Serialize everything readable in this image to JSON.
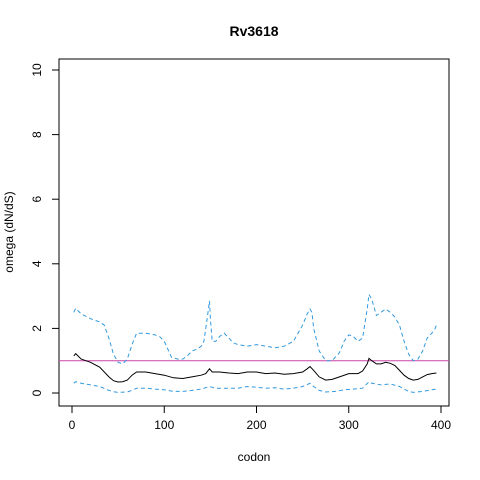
{
  "chart_data": {
    "type": "line",
    "title": "Rv3618",
    "xlabel": "codon",
    "ylabel": "omega (dN/dS)",
    "xlim": [
      0,
      395
    ],
    "ylim": [
      0,
      10
    ],
    "x_ticks": [
      0,
      100,
      200,
      300,
      400
    ],
    "y_ticks": [
      0,
      2,
      4,
      6,
      8,
      10
    ],
    "grid": false,
    "reference_line": {
      "y": 1,
      "color": "#cc44aa"
    },
    "series": [
      {
        "role": "upper",
        "style": "dashed",
        "color": "#3399dd",
        "points": [
          [
            2,
            2.5
          ],
          [
            4,
            2.62
          ],
          [
            10,
            2.45
          ],
          [
            20,
            2.3
          ],
          [
            30,
            2.2
          ],
          [
            35,
            2.1
          ],
          [
            40,
            1.7
          ],
          [
            45,
            1.2
          ],
          [
            50,
            0.95
          ],
          [
            55,
            0.9
          ],
          [
            60,
            1.05
          ],
          [
            65,
            1.5
          ],
          [
            70,
            1.85
          ],
          [
            80,
            1.85
          ],
          [
            90,
            1.8
          ],
          [
            95,
            1.75
          ],
          [
            100,
            1.6
          ],
          [
            108,
            1.1
          ],
          [
            115,
            1.05
          ],
          [
            120,
            1.05
          ],
          [
            125,
            1.15
          ],
          [
            130,
            1.3
          ],
          [
            135,
            1.35
          ],
          [
            140,
            1.45
          ],
          [
            143,
            1.6
          ],
          [
            146,
            2.2
          ],
          [
            149,
            2.85
          ],
          [
            150,
            2.3
          ],
          [
            152,
            1.6
          ],
          [
            156,
            1.6
          ],
          [
            160,
            1.75
          ],
          [
            165,
            1.85
          ],
          [
            170,
            1.7
          ],
          [
            175,
            1.55
          ],
          [
            180,
            1.5
          ],
          [
            190,
            1.45
          ],
          [
            200,
            1.5
          ],
          [
            210,
            1.45
          ],
          [
            220,
            1.4
          ],
          [
            230,
            1.45
          ],
          [
            240,
            1.6
          ],
          [
            250,
            2.1
          ],
          [
            255,
            2.45
          ],
          [
            258,
            2.6
          ],
          [
            260,
            2.5
          ],
          [
            262,
            2.0
          ],
          [
            268,
            1.3
          ],
          [
            275,
            1.0
          ],
          [
            282,
            1.0
          ],
          [
            290,
            1.25
          ],
          [
            295,
            1.6
          ],
          [
            300,
            1.8
          ],
          [
            305,
            1.75
          ],
          [
            310,
            1.6
          ],
          [
            315,
            1.7
          ],
          [
            320,
            2.6
          ],
          [
            322,
            3.05
          ],
          [
            325,
            2.9
          ],
          [
            330,
            2.4
          ],
          [
            335,
            2.5
          ],
          [
            340,
            2.6
          ],
          [
            345,
            2.5
          ],
          [
            350,
            2.35
          ],
          [
            355,
            2.1
          ],
          [
            360,
            1.6
          ],
          [
            365,
            1.2
          ],
          [
            370,
            1.0
          ],
          [
            375,
            1.05
          ],
          [
            380,
            1.3
          ],
          [
            385,
            1.7
          ],
          [
            390,
            1.85
          ],
          [
            393,
            1.95
          ],
          [
            395,
            2.1
          ]
        ]
      },
      {
        "role": "estimate",
        "style": "solid",
        "color": "#000000",
        "points": [
          [
            2,
            1.15
          ],
          [
            4,
            1.22
          ],
          [
            10,
            1.05
          ],
          [
            20,
            0.95
          ],
          [
            30,
            0.8
          ],
          [
            40,
            0.5
          ],
          [
            45,
            0.38
          ],
          [
            50,
            0.34
          ],
          [
            55,
            0.35
          ],
          [
            60,
            0.4
          ],
          [
            65,
            0.55
          ],
          [
            70,
            0.65
          ],
          [
            80,
            0.65
          ],
          [
            90,
            0.6
          ],
          [
            100,
            0.55
          ],
          [
            110,
            0.47
          ],
          [
            120,
            0.45
          ],
          [
            130,
            0.5
          ],
          [
            140,
            0.55
          ],
          [
            145,
            0.6
          ],
          [
            149,
            0.75
          ],
          [
            152,
            0.65
          ],
          [
            160,
            0.65
          ],
          [
            170,
            0.62
          ],
          [
            180,
            0.6
          ],
          [
            190,
            0.65
          ],
          [
            200,
            0.65
          ],
          [
            210,
            0.6
          ],
          [
            220,
            0.62
          ],
          [
            230,
            0.58
          ],
          [
            240,
            0.6
          ],
          [
            250,
            0.65
          ],
          [
            255,
            0.75
          ],
          [
            258,
            0.82
          ],
          [
            262,
            0.7
          ],
          [
            268,
            0.5
          ],
          [
            275,
            0.4
          ],
          [
            282,
            0.42
          ],
          [
            290,
            0.5
          ],
          [
            300,
            0.6
          ],
          [
            310,
            0.6
          ],
          [
            315,
            0.68
          ],
          [
            320,
            0.9
          ],
          [
            322,
            1.07
          ],
          [
            325,
            1.0
          ],
          [
            330,
            0.9
          ],
          [
            335,
            0.9
          ],
          [
            340,
            0.95
          ],
          [
            345,
            0.92
          ],
          [
            350,
            0.85
          ],
          [
            355,
            0.7
          ],
          [
            360,
            0.55
          ],
          [
            365,
            0.45
          ],
          [
            370,
            0.4
          ],
          [
            375,
            0.42
          ],
          [
            380,
            0.5
          ],
          [
            385,
            0.57
          ],
          [
            390,
            0.6
          ],
          [
            395,
            0.62
          ]
        ]
      },
      {
        "role": "lower",
        "style": "dashed",
        "color": "#3399dd",
        "points": [
          [
            2,
            0.3
          ],
          [
            4,
            0.35
          ],
          [
            10,
            0.3
          ],
          [
            20,
            0.25
          ],
          [
            30,
            0.2
          ],
          [
            40,
            0.08
          ],
          [
            45,
            0.04
          ],
          [
            50,
            0.02
          ],
          [
            60,
            0.03
          ],
          [
            65,
            0.08
          ],
          [
            70,
            0.15
          ],
          [
            80,
            0.15
          ],
          [
            90,
            0.12
          ],
          [
            100,
            0.1
          ],
          [
            110,
            0.05
          ],
          [
            120,
            0.05
          ],
          [
            130,
            0.08
          ],
          [
            140,
            0.12
          ],
          [
            149,
            0.2
          ],
          [
            155,
            0.15
          ],
          [
            170,
            0.15
          ],
          [
            180,
            0.15
          ],
          [
            190,
            0.2
          ],
          [
            200,
            0.18
          ],
          [
            210,
            0.15
          ],
          [
            220,
            0.16
          ],
          [
            230,
            0.12
          ],
          [
            240,
            0.15
          ],
          [
            250,
            0.2
          ],
          [
            258,
            0.3
          ],
          [
            262,
            0.2
          ],
          [
            268,
            0.08
          ],
          [
            275,
            0.03
          ],
          [
            285,
            0.05
          ],
          [
            295,
            0.1
          ],
          [
            305,
            0.12
          ],
          [
            315,
            0.15
          ],
          [
            322,
            0.35
          ],
          [
            325,
            0.3
          ],
          [
            335,
            0.25
          ],
          [
            345,
            0.28
          ],
          [
            355,
            0.2
          ],
          [
            360,
            0.12
          ],
          [
            365,
            0.05
          ],
          [
            370,
            0.02
          ],
          [
            380,
            0.05
          ],
          [
            390,
            0.1
          ],
          [
            395,
            0.12
          ]
        ]
      }
    ]
  }
}
